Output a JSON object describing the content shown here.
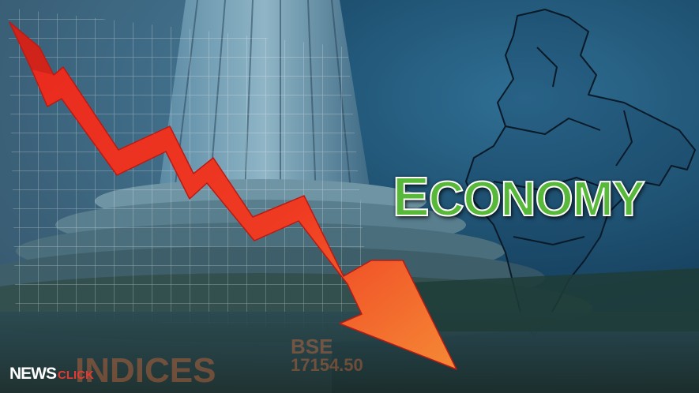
{
  "headline": {
    "first_letter": "E",
    "rest": "CONOMY"
  },
  "background_text": {
    "board_left": "INDICES",
    "board_right_top": "BSE",
    "board_right_bottom": "17154.50"
  },
  "logo": {
    "news": "NEWS",
    "click": "CLICK"
  },
  "colors": {
    "headline_fill": "#58b83a",
    "arrow_top": "#e8281e",
    "arrow_bottom": "#f26a2a",
    "map_outline": "#0a1a28",
    "logo_accent": "#e23a33"
  },
  "icons": [
    "downward-zigzag-arrow",
    "india-map-outline",
    "stock-exchange-building"
  ]
}
